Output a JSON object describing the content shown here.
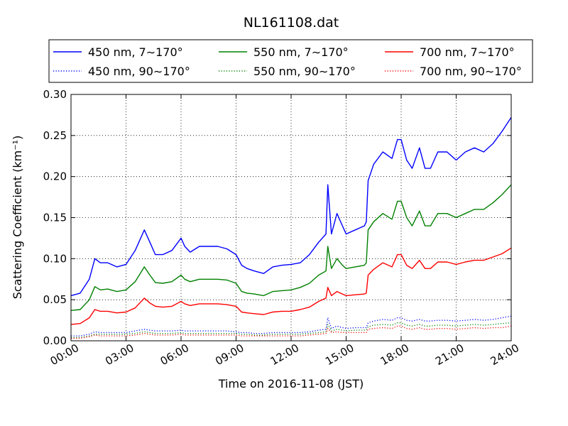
{
  "chart_data": {
    "type": "line",
    "title": "NL161108.dat",
    "xlabel": "Time on 2016-11-08 (JST)",
    "ylabel": "Scattering Coefficient (km⁻¹)",
    "xlim": [
      0,
      24
    ],
    "ylim": [
      0,
      0.3
    ],
    "x_tick_labels": [
      "00:00",
      "03:00",
      "06:00",
      "09:00",
      "12:00",
      "15:00",
      "18:00",
      "21:00",
      "24:00"
    ],
    "y_tick_labels": [
      "0.00",
      "0.05",
      "0.10",
      "0.15",
      "0.20",
      "0.25",
      "0.30"
    ],
    "grid": true,
    "legend_placement": "top, above plot, 3 columns",
    "x": [
      0,
      0.5,
      1,
      1.3,
      1.6,
      2,
      2.5,
      3,
      3.5,
      4,
      4.3,
      4.6,
      5,
      5.5,
      6,
      6.2,
      6.5,
      7,
      7.5,
      8,
      8.5,
      9,
      9.3,
      9.6,
      10,
      10.5,
      11,
      11.5,
      12,
      12.5,
      13,
      13.5,
      13.9,
      14,
      14.2,
      14.5,
      14.8,
      15,
      15.5,
      16,
      16.1,
      16.2,
      16.5,
      17,
      17.5,
      17.8,
      18,
      18.3,
      18.6,
      19,
      19.3,
      19.6,
      20,
      20.5,
      21,
      21.5,
      22,
      22.5,
      23,
      23.5,
      24
    ],
    "series": [
      {
        "name": "450 nm, 7∼170°",
        "color": "#0000ff",
        "style": "solid",
        "values": [
          0.055,
          0.058,
          0.075,
          0.1,
          0.095,
          0.095,
          0.09,
          0.093,
          0.11,
          0.135,
          0.12,
          0.105,
          0.105,
          0.11,
          0.125,
          0.115,
          0.108,
          0.115,
          0.115,
          0.115,
          0.112,
          0.105,
          0.092,
          0.088,
          0.085,
          0.082,
          0.09,
          0.092,
          0.093,
          0.095,
          0.105,
          0.12,
          0.13,
          0.19,
          0.13,
          0.155,
          0.14,
          0.13,
          0.135,
          0.14,
          0.145,
          0.195,
          0.215,
          0.23,
          0.222,
          0.245,
          0.245,
          0.22,
          0.21,
          0.235,
          0.21,
          0.21,
          0.23,
          0.23,
          0.22,
          0.23,
          0.235,
          0.23,
          0.24,
          0.255,
          0.272
        ]
      },
      {
        "name": "550 nm, 7∼170°",
        "color": "#008000",
        "style": "solid",
        "values": [
          0.037,
          0.038,
          0.05,
          0.066,
          0.062,
          0.063,
          0.06,
          0.062,
          0.072,
          0.09,
          0.08,
          0.071,
          0.07,
          0.072,
          0.08,
          0.075,
          0.072,
          0.075,
          0.075,
          0.075,
          0.074,
          0.07,
          0.06,
          0.058,
          0.057,
          0.055,
          0.06,
          0.061,
          0.062,
          0.065,
          0.07,
          0.08,
          0.085,
          0.115,
          0.088,
          0.1,
          0.092,
          0.088,
          0.09,
          0.092,
          0.095,
          0.135,
          0.145,
          0.155,
          0.148,
          0.17,
          0.17,
          0.15,
          0.14,
          0.158,
          0.14,
          0.14,
          0.155,
          0.155,
          0.15,
          0.155,
          0.16,
          0.16,
          0.168,
          0.178,
          0.19
        ]
      },
      {
        "name": "700 nm, 7∼170°",
        "color": "#ff0000",
        "style": "solid",
        "values": [
          0.02,
          0.021,
          0.028,
          0.038,
          0.036,
          0.036,
          0.034,
          0.035,
          0.04,
          0.052,
          0.046,
          0.042,
          0.041,
          0.042,
          0.048,
          0.045,
          0.043,
          0.045,
          0.045,
          0.045,
          0.044,
          0.042,
          0.035,
          0.034,
          0.033,
          0.032,
          0.035,
          0.036,
          0.036,
          0.038,
          0.041,
          0.048,
          0.052,
          0.065,
          0.055,
          0.06,
          0.057,
          0.055,
          0.056,
          0.057,
          0.058,
          0.08,
          0.087,
          0.095,
          0.09,
          0.105,
          0.105,
          0.092,
          0.088,
          0.098,
          0.088,
          0.088,
          0.096,
          0.096,
          0.093,
          0.096,
          0.098,
          0.098,
          0.102,
          0.106,
          0.113
        ]
      },
      {
        "name": "450 nm, 90∼170°",
        "color": "#0000ff",
        "style": "dotted",
        "values": [
          0.006,
          0.006,
          0.008,
          0.011,
          0.01,
          0.01,
          0.01,
          0.01,
          0.012,
          0.014,
          0.013,
          0.012,
          0.012,
          0.012,
          0.013,
          0.012,
          0.012,
          0.012,
          0.012,
          0.012,
          0.012,
          0.011,
          0.01,
          0.01,
          0.009,
          0.009,
          0.01,
          0.01,
          0.01,
          0.01,
          0.011,
          0.013,
          0.014,
          0.028,
          0.015,
          0.018,
          0.016,
          0.015,
          0.016,
          0.016,
          0.016,
          0.022,
          0.024,
          0.026,
          0.025,
          0.028,
          0.028,
          0.025,
          0.024,
          0.026,
          0.024,
          0.024,
          0.025,
          0.025,
          0.024,
          0.025,
          0.026,
          0.025,
          0.026,
          0.028,
          0.03
        ]
      },
      {
        "name": "550 nm, 90∼170°",
        "color": "#008000",
        "style": "dotted",
        "values": [
          0.004,
          0.004,
          0.006,
          0.008,
          0.008,
          0.008,
          0.008,
          0.008,
          0.009,
          0.011,
          0.01,
          0.009,
          0.009,
          0.009,
          0.01,
          0.009,
          0.009,
          0.009,
          0.009,
          0.009,
          0.009,
          0.009,
          0.008,
          0.008,
          0.007,
          0.007,
          0.008,
          0.008,
          0.008,
          0.008,
          0.009,
          0.01,
          0.011,
          0.02,
          0.012,
          0.014,
          0.013,
          0.012,
          0.013,
          0.013,
          0.013,
          0.017,
          0.019,
          0.02,
          0.019,
          0.022,
          0.022,
          0.019,
          0.018,
          0.02,
          0.018,
          0.018,
          0.019,
          0.019,
          0.018,
          0.019,
          0.02,
          0.019,
          0.02,
          0.021,
          0.022
        ]
      },
      {
        "name": "700 nm, 90∼170°",
        "color": "#ff0000",
        "style": "dotted",
        "values": [
          0.003,
          0.003,
          0.005,
          0.007,
          0.006,
          0.006,
          0.006,
          0.006,
          0.007,
          0.009,
          0.008,
          0.007,
          0.007,
          0.007,
          0.008,
          0.007,
          0.007,
          0.007,
          0.007,
          0.007,
          0.007,
          0.007,
          0.006,
          0.006,
          0.006,
          0.006,
          0.006,
          0.006,
          0.006,
          0.006,
          0.007,
          0.008,
          0.009,
          0.015,
          0.01,
          0.011,
          0.01,
          0.01,
          0.01,
          0.01,
          0.01,
          0.014,
          0.015,
          0.016,
          0.015,
          0.018,
          0.018,
          0.015,
          0.014,
          0.016,
          0.014,
          0.014,
          0.015,
          0.015,
          0.014,
          0.015,
          0.016,
          0.015,
          0.016,
          0.016,
          0.018
        ]
      }
    ]
  }
}
